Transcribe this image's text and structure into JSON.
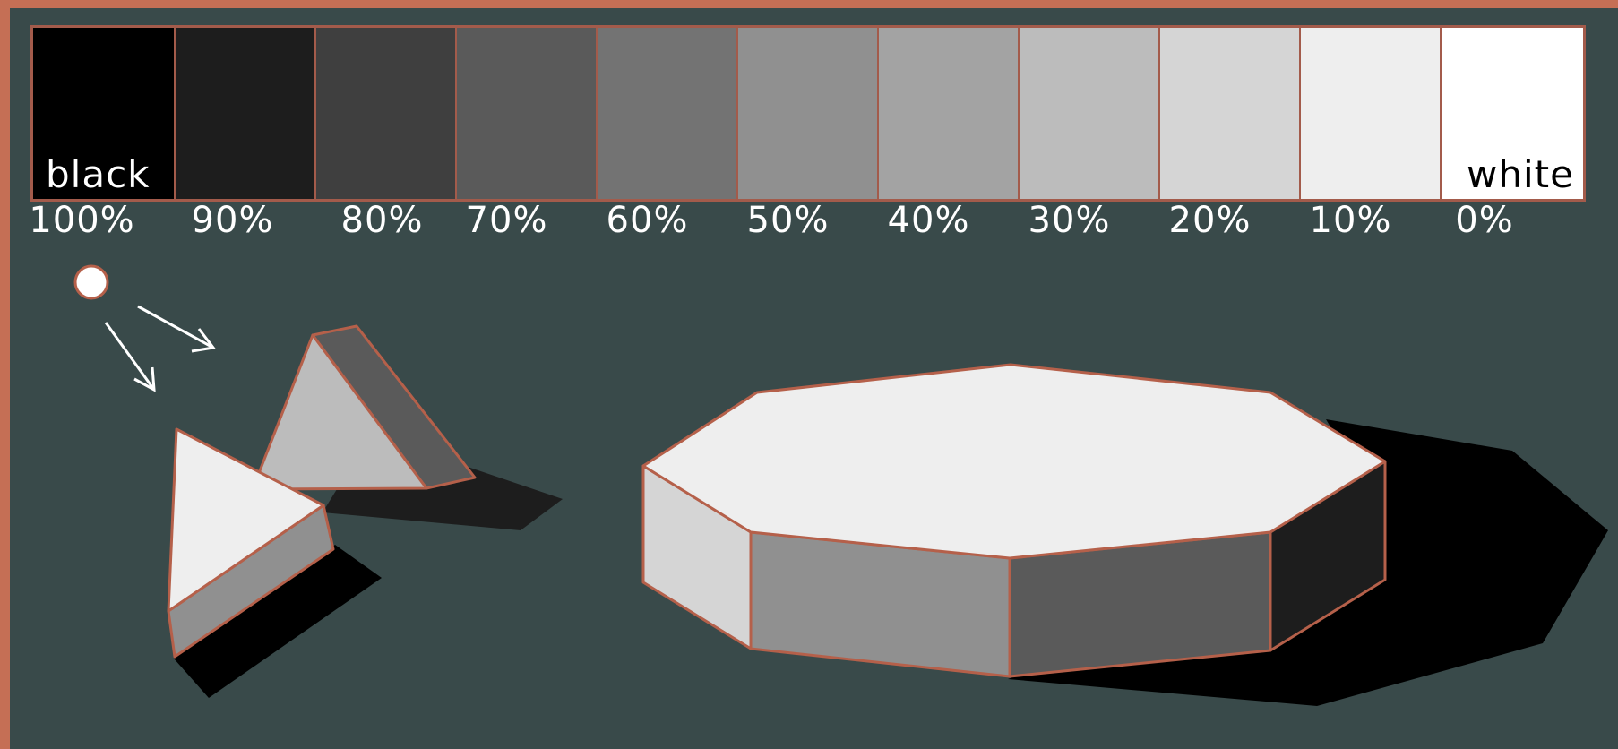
{
  "swatches": [
    {
      "percent": "100%",
      "color": "#000000",
      "name": "black",
      "name_color": "#ffffff"
    },
    {
      "percent": "90%",
      "color": "#1d1d1d"
    },
    {
      "percent": "80%",
      "color": "#3f3f3f"
    },
    {
      "percent": "70%",
      "color": "#5a5a5a"
    },
    {
      "percent": "60%",
      "color": "#737373"
    },
    {
      "percent": "50%",
      "color": "#909090"
    },
    {
      "percent": "40%",
      "color": "#a3a3a3"
    },
    {
      "percent": "30%",
      "color": "#bcbcbc"
    },
    {
      "percent": "20%",
      "color": "#d5d5d5"
    },
    {
      "percent": "10%",
      "color": "#eeeeee"
    },
    {
      "percent": "0%",
      "color": "#ffffff",
      "name": "white",
      "name_color": "#000000"
    }
  ],
  "colors": {
    "background": "#394a4a",
    "frame": "#c56f55",
    "outline": "#b5604a",
    "light_source": "#ffffff"
  }
}
